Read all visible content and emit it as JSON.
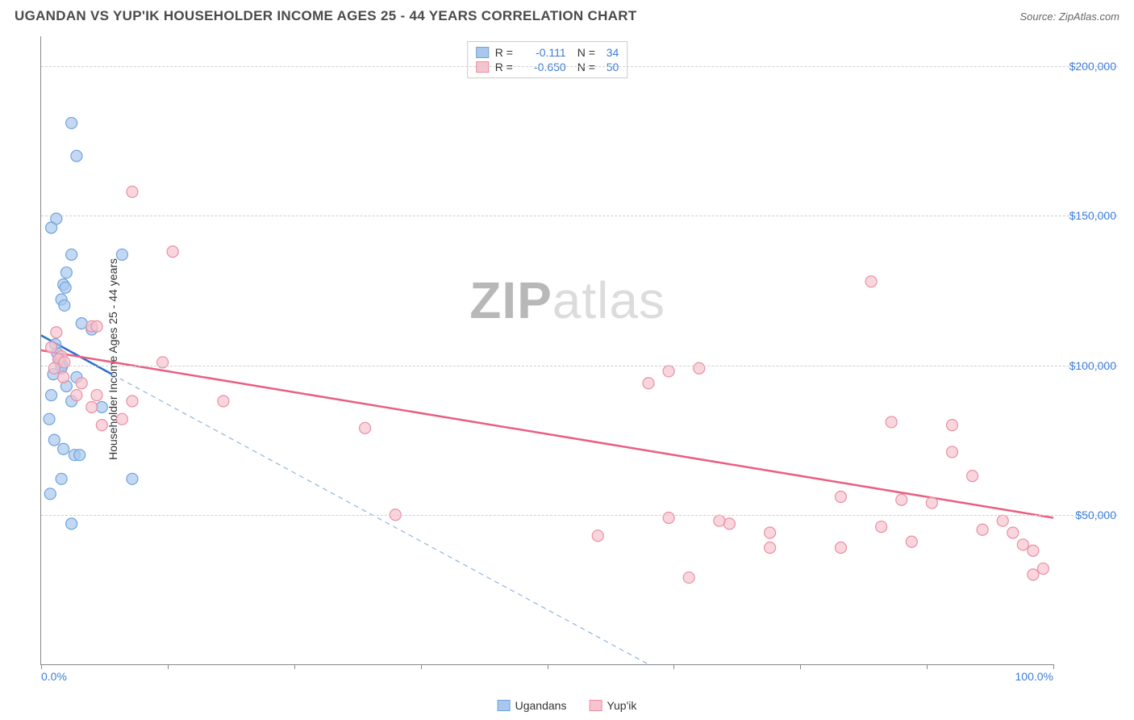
{
  "title": "UGANDAN VS YUP'IK HOUSEHOLDER INCOME AGES 25 - 44 YEARS CORRELATION CHART",
  "source": "Source: ZipAtlas.com",
  "watermark": {
    "zip": "ZIP",
    "atlas": "atlas"
  },
  "chart": {
    "type": "scatter",
    "ylabel": "Householder Income Ages 25 - 44 years",
    "xlim": [
      0,
      100
    ],
    "ylim": [
      0,
      210000
    ],
    "xticks": [
      0,
      12.5,
      25,
      37.5,
      50,
      62.5,
      75,
      87.5,
      100
    ],
    "xtick_labels": {
      "0": "0.0%",
      "100": "100.0%"
    },
    "yticks": [
      50000,
      100000,
      150000,
      200000
    ],
    "ytick_labels": [
      "$50,000",
      "$100,000",
      "$150,000",
      "$200,000"
    ],
    "grid_color": "#d0d0d0",
    "background_color": "#ffffff",
    "axis_color": "#888888",
    "label_color": "#3b7dd8",
    "series": [
      {
        "name": "Ugandans",
        "color_fill": "#a9c7ec",
        "color_stroke": "#6fa3dd",
        "marker_radius": 7,
        "opacity": 0.7,
        "R": "-0.111",
        "N": "34",
        "trend": {
          "x1": 0,
          "y1": 110000,
          "x2": 7,
          "y2": 97000,
          "dash_x2": 60,
          "dash_y2": 0,
          "solid_color": "#2e6fc9",
          "dash_color": "#8fb4e0"
        },
        "points": [
          [
            3,
            181000
          ],
          [
            3.5,
            170000
          ],
          [
            1.5,
            149000
          ],
          [
            1,
            146000
          ],
          [
            3,
            137000
          ],
          [
            8,
            137000
          ],
          [
            2.5,
            131000
          ],
          [
            2.2,
            127000
          ],
          [
            2.4,
            126000
          ],
          [
            2,
            122000
          ],
          [
            2.3,
            120000
          ],
          [
            4,
            114000
          ],
          [
            5,
            112000
          ],
          [
            1.4,
            107000
          ],
          [
            1.6,
            104000
          ],
          [
            1.8,
            102000
          ],
          [
            1.9,
            101000
          ],
          [
            2.1,
            100000
          ],
          [
            2.0,
            99000
          ],
          [
            1.2,
            97000
          ],
          [
            3.5,
            96000
          ],
          [
            2.5,
            93000
          ],
          [
            1,
            90000
          ],
          [
            3,
            88000
          ],
          [
            6,
            86000
          ],
          [
            0.8,
            82000
          ],
          [
            1.3,
            75000
          ],
          [
            2.2,
            72000
          ],
          [
            3.3,
            70000
          ],
          [
            3.8,
            70000
          ],
          [
            2,
            62000
          ],
          [
            9,
            62000
          ],
          [
            0.9,
            57000
          ],
          [
            3,
            47000
          ]
        ]
      },
      {
        "name": "Yup'ik",
        "color_fill": "#f6c4cf",
        "color_stroke": "#e98fa3",
        "marker_radius": 7,
        "opacity": 0.7,
        "R": "-0.650",
        "N": "50",
        "trend": {
          "x1": 0,
          "y1": 105000,
          "x2": 100,
          "y2": 49000,
          "solid_color": "#e95f82"
        },
        "points": [
          [
            9,
            158000
          ],
          [
            13,
            138000
          ],
          [
            5,
            113000
          ],
          [
            5.5,
            113000
          ],
          [
            1.5,
            111000
          ],
          [
            1,
            106000
          ],
          [
            2,
            103000
          ],
          [
            1.7,
            102000
          ],
          [
            2.3,
            101000
          ],
          [
            12,
            101000
          ],
          [
            1.3,
            99000
          ],
          [
            2.2,
            96000
          ],
          [
            4,
            94000
          ],
          [
            3.5,
            90000
          ],
          [
            5.5,
            90000
          ],
          [
            9,
            88000
          ],
          [
            18,
            88000
          ],
          [
            5,
            86000
          ],
          [
            8,
            82000
          ],
          [
            6,
            80000
          ],
          [
            32,
            79000
          ],
          [
            62,
            98000
          ],
          [
            65,
            99000
          ],
          [
            82,
            128000
          ],
          [
            60,
            94000
          ],
          [
            35,
            50000
          ],
          [
            55,
            43000
          ],
          [
            84,
            81000
          ],
          [
            90,
            80000
          ],
          [
            62,
            49000
          ],
          [
            68,
            47000
          ],
          [
            67,
            48000
          ],
          [
            72,
            44000
          ],
          [
            79,
            56000
          ],
          [
            85,
            55000
          ],
          [
            79,
            39000
          ],
          [
            72,
            39000
          ],
          [
            83,
            46000
          ],
          [
            86,
            41000
          ],
          [
            90,
            71000
          ],
          [
            92,
            63000
          ],
          [
            93,
            45000
          ],
          [
            95,
            48000
          ],
          [
            96,
            44000
          ],
          [
            97,
            40000
          ],
          [
            98,
            38000
          ],
          [
            99,
            32000
          ],
          [
            98,
            30000
          ],
          [
            64,
            29000
          ],
          [
            88,
            54000
          ]
        ]
      }
    ],
    "legend_bottom": [
      {
        "label": "Ugandans",
        "fill": "#a9c7ec",
        "stroke": "#6fa3dd"
      },
      {
        "label": "Yup'ik",
        "fill": "#f6c4cf",
        "stroke": "#e98fa3"
      }
    ]
  }
}
